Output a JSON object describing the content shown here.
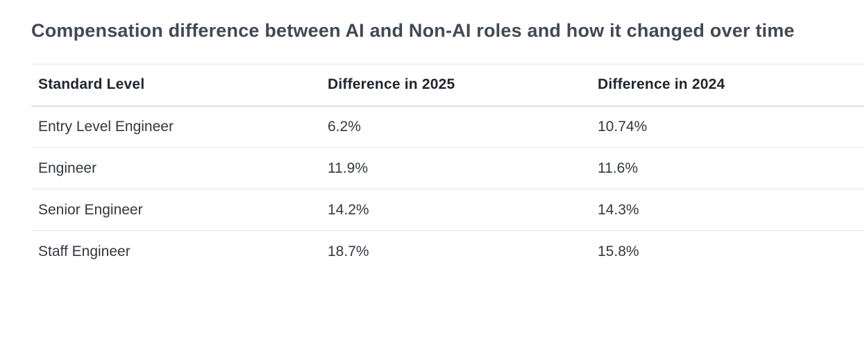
{
  "page": {
    "title": "Compensation difference between AI and Non-AI roles and how it changed over time"
  },
  "table": {
    "columns": [
      "Standard Level",
      "Difference in 2025",
      "Difference in 2024"
    ],
    "rows": [
      {
        "level": "Entry Level Engineer",
        "diff_2025": "6.2%",
        "diff_2024": "10.74%"
      },
      {
        "level": "Engineer",
        "diff_2025": "11.9%",
        "diff_2024": "11.6%"
      },
      {
        "level": "Senior Engineer",
        "diff_2025": "14.2%",
        "diff_2024": "14.3%"
      },
      {
        "level": "Staff Engineer",
        "diff_2025": "18.7%",
        "diff_2024": "15.8%"
      }
    ]
  },
  "chart_data": {
    "type": "table",
    "title": "Compensation difference between AI and Non-AI roles and how it changed over time",
    "columns": [
      "Standard Level",
      "Difference in 2025",
      "Difference in 2024"
    ],
    "rows": [
      [
        "Entry Level Engineer",
        "6.2%",
        "10.74%"
      ],
      [
        "Engineer",
        "11.9%",
        "11.6%"
      ],
      [
        "Senior Engineer",
        "14.2%",
        "14.3%"
      ],
      [
        "Staff Engineer",
        "18.7%",
        "15.8%"
      ]
    ],
    "categories": [
      "Entry Level Engineer",
      "Engineer",
      "Senior Engineer",
      "Staff Engineer"
    ],
    "series": [
      {
        "name": "Difference in 2025",
        "values": [
          6.2,
          11.9,
          14.2,
          18.7
        ],
        "unit": "%"
      },
      {
        "name": "Difference in 2024",
        "values": [
          10.74,
          11.6,
          14.3,
          15.8
        ],
        "unit": "%"
      }
    ]
  },
  "colors": {
    "background": "#ffffff",
    "title_text": "#414956",
    "header_text": "#21252d",
    "body_text": "#33373f",
    "header_border": "#dde0e5",
    "row_border": "#e5e6e8"
  }
}
